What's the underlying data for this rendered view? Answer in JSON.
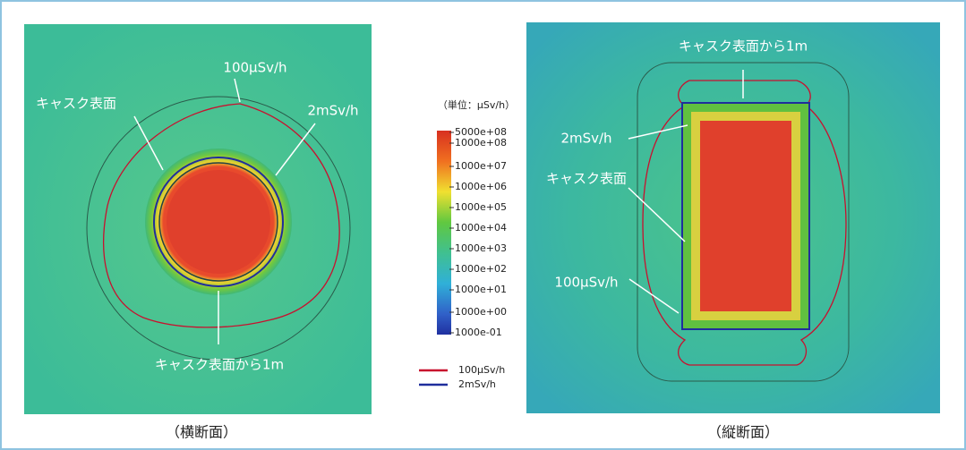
{
  "left_panel": {
    "labels": {
      "dose_100": "100μSv/h",
      "surface": "キャスク表面",
      "dose_2m": "2mSv/h",
      "surface_1m": "キャスク表面から1m"
    },
    "caption": "（横断面）"
  },
  "right_panel": {
    "labels": {
      "surface_1m": "キャスク表面から1m",
      "dose_2m": "2mSv/h",
      "surface": "キャスク表面",
      "dose_100": "100μSv/h"
    },
    "caption": "（縦断面）"
  },
  "colorbar": {
    "unit": "（単位：μSv/h）",
    "tick_labels": [
      "5000e+08",
      "1000e+08",
      "1000e+07",
      "1000e+06",
      "1000e+05",
      "1000e+04",
      "1000e+03",
      "1000e+02",
      "1000e+01",
      "1000e+00",
      "1000e-01"
    ]
  },
  "legend": [
    {
      "label": "100μSv/h",
      "color": "#c8102e"
    },
    {
      "label": "2mSv/h",
      "color": "#1f2e9c"
    }
  ]
}
